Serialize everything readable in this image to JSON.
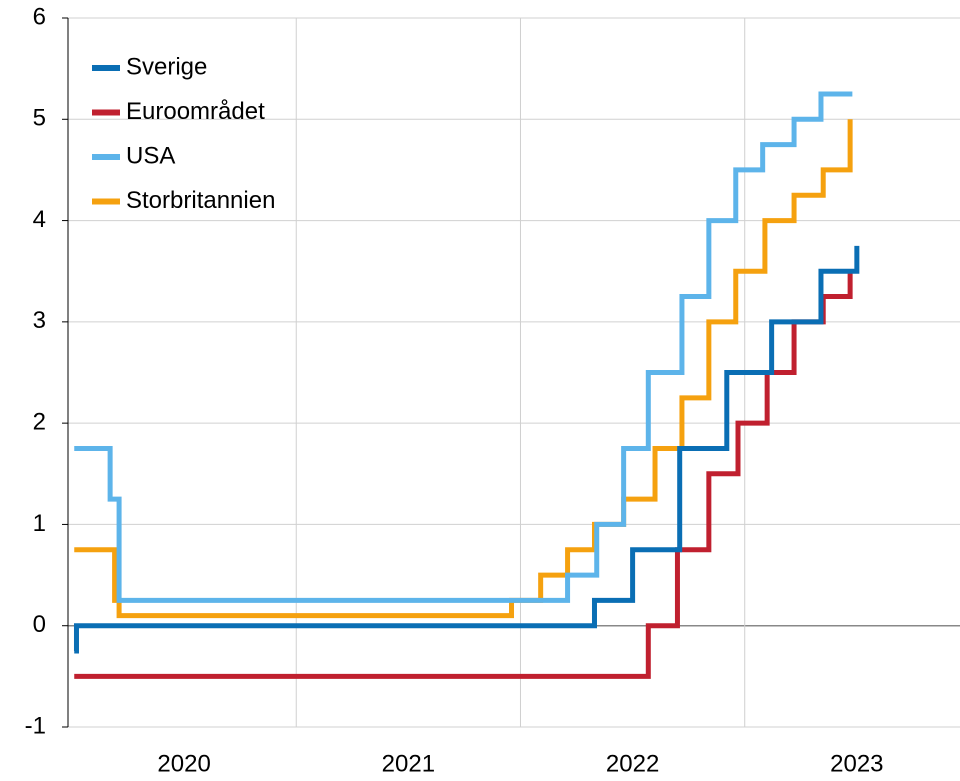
{
  "chart_data": {
    "type": "step",
    "series": [
      {
        "name": "Sverige",
        "color": "#0a6eb4",
        "x": [
          2020.01,
          2020.02,
          2022.33,
          2022.5,
          2022.71,
          2022.92,
          2023.12,
          2023.34,
          2023.5
        ],
        "values": [
          -0.25,
          0,
          0.25,
          0.75,
          1.75,
          2.5,
          3,
          3.5,
          3.75
        ]
      },
      {
        "name": "Euroområdet",
        "color": "#c0202f",
        "x": [
          2020.01,
          2022.57,
          2022.7,
          2022.84,
          2022.97,
          2023.1,
          2023.22,
          2023.35,
          2023.47
        ],
        "values": [
          -0.5,
          0,
          0.75,
          1.5,
          2,
          2.5,
          3,
          3.25,
          3.5
        ]
      },
      {
        "name": "USA",
        "color": "#5db4ea",
        "x": [
          2020.01,
          2020.17,
          2020.21,
          2022.21,
          2022.34,
          2022.46,
          2022.57,
          2022.72,
          2022.84,
          2022.96,
          2023.08,
          2023.22,
          2023.34,
          2023.48
        ],
        "values": [
          1.75,
          1.25,
          0.25,
          0.5,
          1,
          1.75,
          2.5,
          3.25,
          4,
          4.5,
          4.75,
          5,
          5.25,
          5.25
        ]
      },
      {
        "name": "Storbritannien",
        "color": "#f5a10f",
        "x": [
          2020.01,
          2020.19,
          2020.21,
          2021.96,
          2022.09,
          2022.21,
          2022.33,
          2022.46,
          2022.6,
          2022.72,
          2022.84,
          2022.96,
          2023.09,
          2023.22,
          2023.35,
          2023.47
        ],
        "values": [
          0.75,
          0.25,
          0.1,
          0.25,
          0.5,
          0.75,
          1,
          1.25,
          1.75,
          2.25,
          3,
          3.5,
          4,
          4.25,
          4.5,
          5
        ]
      }
    ],
    "xlim": [
      2020,
      2023.96
    ],
    "xticks": [
      {
        "value": 2020.5,
        "label": "2020"
      },
      {
        "value": 2021.5,
        "label": "2021"
      },
      {
        "value": 2022.5,
        "label": "2022"
      },
      {
        "value": 2023.5,
        "label": "2023"
      }
    ],
    "xgrid": [
      2021,
      2022,
      2023
    ],
    "ylim": [
      -1,
      6
    ],
    "yticks": [
      -1,
      0,
      1,
      2,
      3,
      4,
      5,
      6
    ],
    "grid": true,
    "legend": "upper left"
  }
}
